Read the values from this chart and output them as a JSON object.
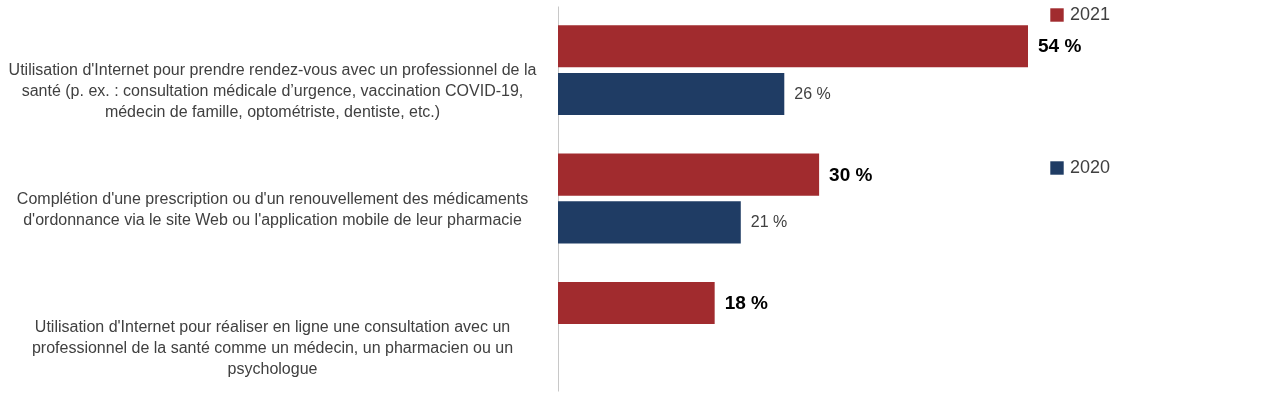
{
  "chart_data": {
    "type": "bar",
    "orientation": "horizontal",
    "legend": "right",
    "categories": [
      "Utilisation d'Internet pour prendre rendez-vous avec un professionnel de la santé (p. ex. : consultation médicale d’urgence, vaccination COVID-19, médecin de famille, optométriste, dentiste, etc.)",
      "Complétion d'une prescription ou d'un renouvellement des médicaments d'ordonnance via le site Web ou l'application mobile de leur pharmacie",
      "Utilisation d'Internet pour réaliser en ligne une consultation avec un professionnel de la santé comme un médecin, un pharmacien ou un psychologue"
    ],
    "series": [
      {
        "name": "2021",
        "color": "#a12b2e",
        "values": [
          54,
          30,
          18
        ],
        "value_labels": [
          "54 %",
          "30 %",
          "18 %"
        ]
      },
      {
        "name": "2020",
        "color": "#1f3c64",
        "values": [
          26,
          21,
          null
        ],
        "value_labels": [
          "26 %",
          "21 %",
          null
        ]
      }
    ]
  }
}
